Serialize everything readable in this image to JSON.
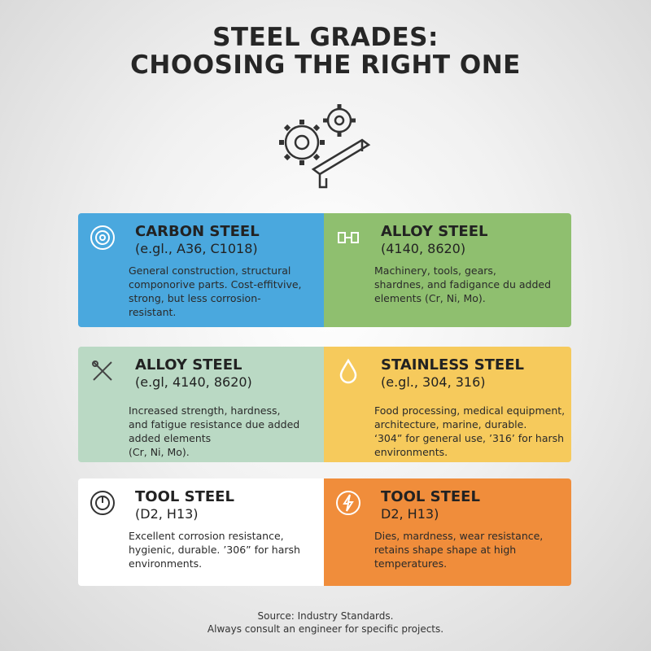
{
  "header": {
    "title_lines": [
      "STEEL GRADES:",
      "CHOOSING THE RIGHT ONE"
    ]
  },
  "cards": [
    {
      "title": "CARBON STEEL",
      "subtitle": "(e.gl., A36, C1018)",
      "lines": [
        "General construction, structural",
        "componorive parts. Cost-effitvive,",
        "strong, but less corrosion-",
        "resistant."
      ]
    },
    {
      "title": "ALLOY STEEL",
      "subtitle": "(4140, 8620)",
      "lines": [
        "Machinery, tools, gears,",
        "shardnes, and fadigance du added",
        "elements (Cr, Ni, Mo)."
      ]
    },
    {
      "title": "ALLOY STEEL",
      "subtitle": "(e.gl, 4140, 8620)",
      "lines": [
        "Increased strength, hardness,",
        "and fatigue resistance due added",
        "added elements",
        "(Cr, Ni, Mo)."
      ]
    },
    {
      "title": "STAINLESS STEEL",
      "subtitle": "(e.gl., 304, 316)",
      "lines": [
        "Food processing, medical equipment,",
        "architecture, marine, durable.",
        "‘304” for general use, ’316’ for harsh",
        "environments."
      ]
    },
    {
      "title": "TOOL STEEL",
      "subtitle": "(D2, H13)",
      "lines": [
        "Excellent corrosion resistance,",
        "hygienic, durable. ’306” for harsh",
        "environments."
      ]
    },
    {
      "title": "TOOL STEEL",
      "subtitle": "D2, H13)",
      "lines": [
        "Dies, mardness, wear resistance,",
        "retains shape shape at high",
        "temperatures."
      ]
    }
  ],
  "footer": {
    "lines": [
      "Source: Industry Standards.",
      "Always consult an engineer for specific projects."
    ]
  }
}
